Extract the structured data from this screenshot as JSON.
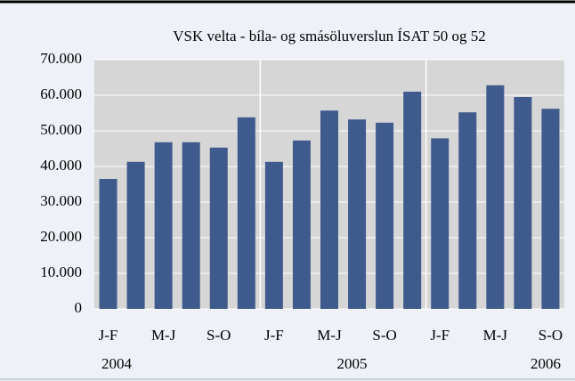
{
  "chart_data": {
    "type": "bar",
    "title": "VSK velta - bíla- og smásöluverslun ÍSAT 50 og 52",
    "categories": [
      "J-F",
      null,
      "M-J",
      null,
      "S-O",
      null,
      "J-F",
      null,
      "M-J",
      null,
      "S-O",
      null,
      "J-F",
      null,
      "M-J",
      null,
      "S-O"
    ],
    "groups": [
      "2004",
      "2005",
      "2006"
    ],
    "values": [
      36500,
      41300,
      46800,
      46800,
      45300,
      53800,
      41300,
      47300,
      55700,
      53200,
      52300,
      61000,
      47900,
      55200,
      62800,
      59500,
      56200
    ],
    "color": "#3f5a8c",
    "ylim": [
      0,
      70000
    ],
    "yticks": [
      0,
      {
        "value": 10000,
        "label": "10.000"
      },
      {
        "value": 20000,
        "label": "20.000"
      },
      {
        "value": 30000,
        "label": "30.000"
      },
      {
        "value": 40000,
        "label": "40.000"
      },
      {
        "value": 50000,
        "label": "50.000"
      },
      {
        "value": 60000,
        "label": "60.000"
      },
      {
        "value": 70000,
        "label": "70.000"
      }
    ],
    "grid": true
  }
}
